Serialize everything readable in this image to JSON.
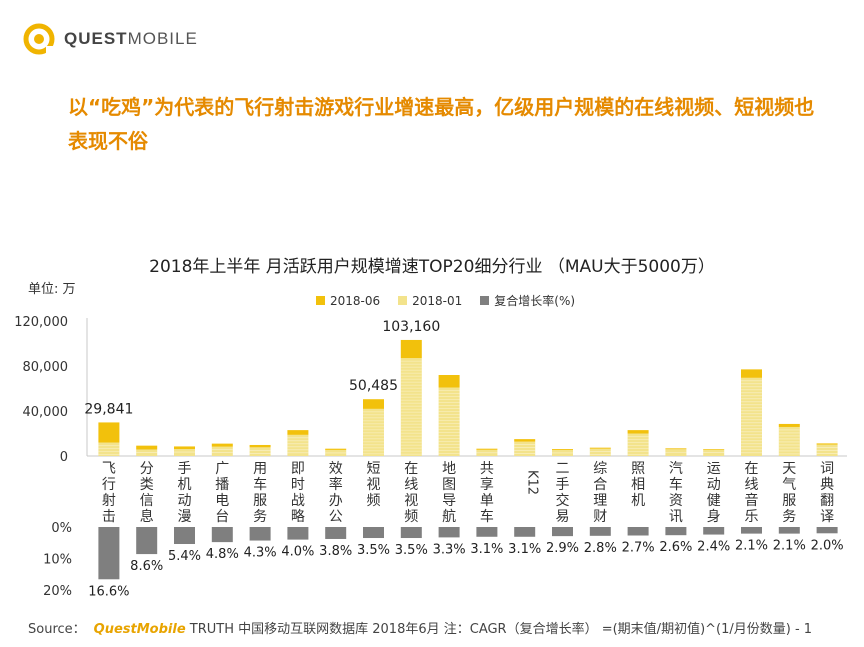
{
  "brand": {
    "name_bold": "QUEST",
    "name_rest": "MOBILE"
  },
  "headline": "以“吃鸡”为代表的飞行射击游戏行业增速最高，亿级用户规模的在线视频、短视频也表现不俗",
  "unit_label": "单位: 万",
  "colors": {
    "current": "#f2c10c",
    "previous": "#f3e38c",
    "growth": "#7f7f7f",
    "headline": "#e58a00"
  },
  "source": {
    "label": "Source：",
    "brand": "QuestMobile",
    "text": "TRUTH 中国移动互联网数据库 2018年6月   注：CAGR（复合增长率） =(期末值/期初值)^(1/月份数量) - 1"
  },
  "chart_data": {
    "type": "bar",
    "title": "2018年上半年 月活跃用户规模增速TOP20细分行业 （MAU大于5000万）",
    "categories": [
      "飞行射击",
      "分类信息",
      "手机动漫",
      "广播电台",
      "用车服务",
      "即时战略",
      "效率办公",
      "短视频",
      "在线视频",
      "地图导航",
      "共享单车",
      "K12",
      "二手交易",
      "综合理财",
      "照相机",
      "汽车资讯",
      "运动健身",
      "在线音乐",
      "天气服务",
      "词典翻译"
    ],
    "series": [
      {
        "name": "2018-06",
        "values": [
          29841,
          9200,
          8500,
          11000,
          9800,
          23000,
          6500,
          50485,
          103160,
          72000,
          6500,
          15000,
          6200,
          7400,
          23000,
          6800,
          6200,
          77000,
          28500,
          11200
        ]
      },
      {
        "name": "2018-01",
        "values": [
          12000,
          5800,
          6200,
          8300,
          7700,
          18800,
          5400,
          41900,
          87000,
          60900,
          5500,
          12800,
          5400,
          6500,
          20000,
          6000,
          5600,
          69500,
          25800,
          10200
        ]
      },
      {
        "name": "复合增长率(%)",
        "values": [
          16.6,
          8.6,
          5.4,
          4.8,
          4.3,
          4.0,
          3.8,
          3.5,
          3.5,
          3.3,
          3.1,
          3.1,
          2.9,
          2.8,
          2.7,
          2.6,
          2.4,
          2.1,
          2.1,
          2.0
        ]
      }
    ],
    "value_labels": [
      "29,841",
      "50,485",
      "103,160"
    ],
    "growth_labels": [
      "16.6%",
      "8.6%",
      "5.4%",
      "4.8%",
      "4.3%",
      "4.0%",
      "3.8%",
      "3.5%",
      "3.5%",
      "3.3%",
      "3.1%",
      "3.1%",
      "2.9%",
      "2.8%",
      "2.7%",
      "2.6%",
      "2.4%",
      "2.1%",
      "2.1%",
      "2.0%"
    ],
    "y_ticks": [
      "120,000",
      "80,000",
      "40,000",
      "0"
    ],
    "y_tick_values": [
      120000,
      80000,
      40000,
      0
    ],
    "ylim": [
      0,
      120000
    ],
    "growth_ticks": [
      "0%",
      "10%",
      "20%"
    ],
    "growth_tick_values": [
      0,
      10,
      20
    ],
    "growth_lim": [
      0,
      20
    ],
    "legend": [
      "2018-06",
      "2018-01",
      "复合增长率(%)"
    ],
    "legend_position": "top-center",
    "grid": false
  }
}
